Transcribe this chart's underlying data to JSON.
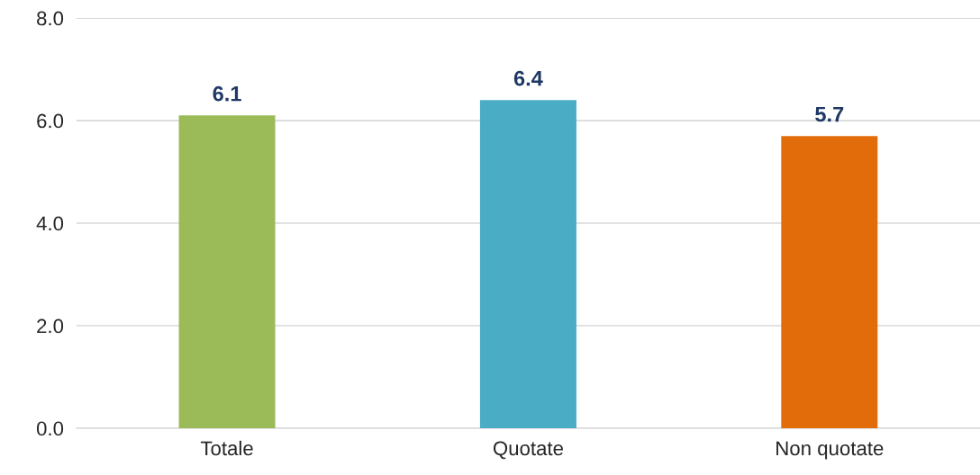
{
  "chart_data": {
    "type": "bar",
    "categories": [
      "Totale",
      "Quotate",
      "Non quotate"
    ],
    "values": [
      6.1,
      6.4,
      5.7
    ],
    "colors": [
      "#9bbb59",
      "#4bacc6",
      "#e36c0a"
    ],
    "ylim": [
      0,
      8
    ],
    "yticks": [
      {
        "value": 0,
        "label": "0.0"
      },
      {
        "value": 2,
        "label": "2.0"
      },
      {
        "value": 4,
        "label": "4.0"
      },
      {
        "value": 6,
        "label": "6.0"
      },
      {
        "value": 8,
        "label": "8.0"
      }
    ],
    "grid": "y",
    "data_labels": true,
    "legend": false
  }
}
